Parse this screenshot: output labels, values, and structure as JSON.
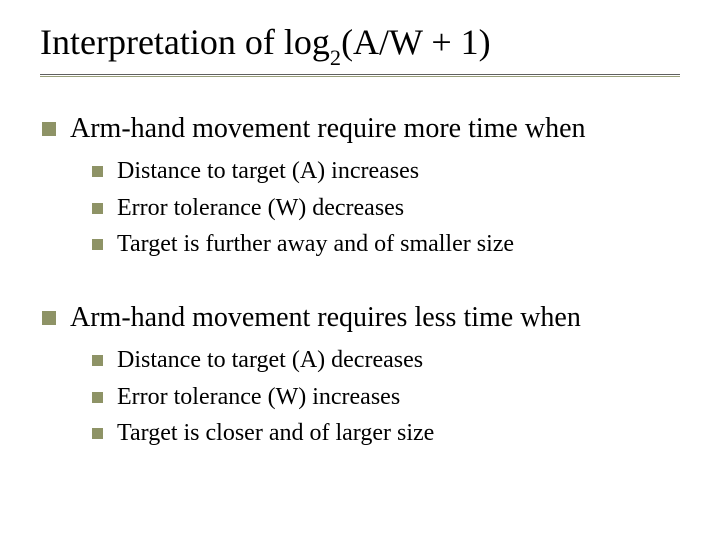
{
  "colors": {
    "background": "#ffffff",
    "text": "#000000",
    "bullet": "#8e9366",
    "underline_top": "#606060",
    "underline_bottom": "#9aa07a"
  },
  "typography": {
    "family": "Times New Roman",
    "title_fontsize": 36,
    "l1_fontsize": 28,
    "l2_fontsize": 24
  },
  "title": {
    "pre": "Interpretation of log",
    "sub": "2",
    "post": "(A/W + 1)"
  },
  "sections": [
    {
      "heading": "Arm-hand movement require more time when",
      "items": [
        "Distance to target (A) increases",
        "Error tolerance (W) decreases",
        "Target is further away and of smaller size"
      ]
    },
    {
      "heading": "Arm-hand movement requires less time when",
      "items": [
        "Distance to target (A) decreases",
        "Error tolerance (W) increases",
        "Target is closer and of larger size"
      ]
    }
  ]
}
